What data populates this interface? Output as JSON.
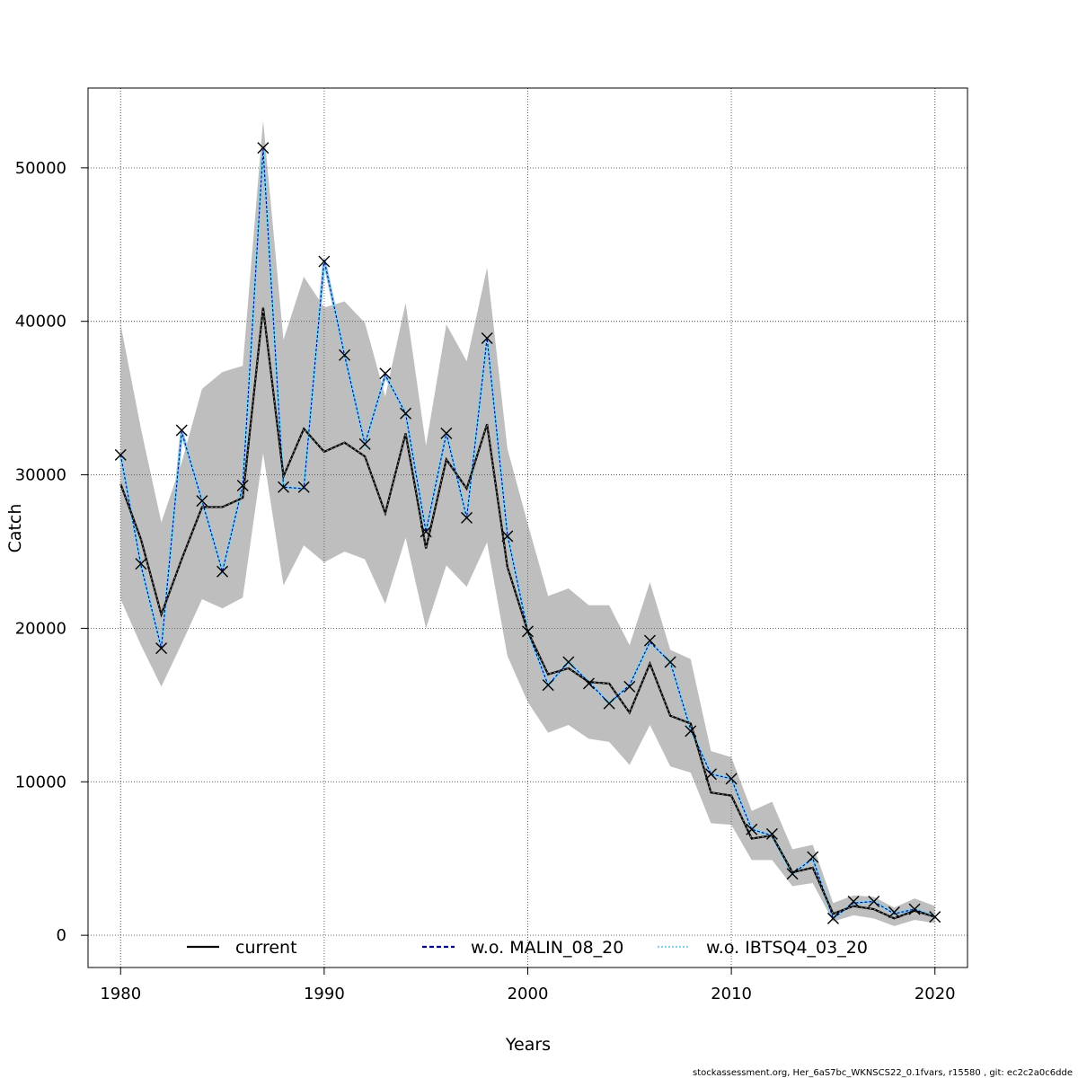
{
  "chart_data": {
    "type": "line",
    "xlabel": "Years",
    "ylabel": "Catch",
    "xlim": [
      1978.4,
      2021.6
    ],
    "ylim": [
      -2100,
      55200
    ],
    "x_ticks": [
      1980,
      1990,
      2000,
      2010,
      2020
    ],
    "y_ticks": [
      0,
      10000,
      20000,
      30000,
      40000,
      50000
    ],
    "grid": true,
    "legend_position": "bottom",
    "colors": {
      "band": "#bebebe",
      "current": "#000000",
      "malin": "#000080",
      "ibtsq4": "#87ceeb",
      "observed": "#000000"
    },
    "x": [
      1980,
      1981,
      1982,
      1983,
      1984,
      1985,
      1986,
      1987,
      1988,
      1989,
      1990,
      1991,
      1992,
      1993,
      1994,
      1995,
      1996,
      1997,
      1998,
      1999,
      2000,
      2001,
      2002,
      2003,
      2004,
      2005,
      2006,
      2007,
      2008,
      2009,
      2010,
      2011,
      2012,
      2013,
      2014,
      2015,
      2016,
      2017,
      2018,
      2019,
      2020
    ],
    "band": {
      "name": "current confidence interval",
      "upper": [
        39800,
        33000,
        26900,
        30800,
        35600,
        36700,
        37100,
        53100,
        38800,
        42900,
        40900,
        41300,
        39900,
        35100,
        41200,
        31900,
        39800,
        37400,
        43500,
        31700,
        26800,
        22100,
        22600,
        21500,
        21500,
        18900,
        23000,
        18600,
        18000,
        12000,
        11600,
        8100,
        8700,
        5600,
        5900,
        2100,
        2600,
        2500,
        1800,
        2400,
        1900
      ],
      "lower": [
        21900,
        18900,
        16200,
        19000,
        21900,
        21300,
        22000,
        31400,
        22800,
        25400,
        24300,
        25000,
        24500,
        21600,
        25900,
        20000,
        24100,
        22700,
        25600,
        18200,
        15200,
        13200,
        13700,
        12800,
        12600,
        11100,
        13700,
        11000,
        10600,
        7300,
        7200,
        4900,
        4900,
        3200,
        3400,
        900,
        1300,
        1100,
        600,
        1000,
        800
      ]
    },
    "series": [
      {
        "name": "current",
        "values": [
          29400,
          25800,
          20900,
          24500,
          27900,
          27900,
          28500,
          40900,
          29900,
          33000,
          31500,
          32100,
          31200,
          27500,
          32700,
          25200,
          31000,
          29100,
          33300,
          24000,
          19800,
          17000,
          17400,
          16500,
          16400,
          14500,
          17700,
          14300,
          13800,
          9300,
          9100,
          6300,
          6500,
          4100,
          4400,
          1400,
          1900,
          1700,
          1100,
          1600,
          1200
        ]
      },
      {
        "name": "w.o. MALIN_08_20",
        "values": [
          31300,
          24100,
          18700,
          32800,
          28300,
          23700,
          29300,
          51200,
          29200,
          29100,
          44000,
          37800,
          32000,
          36500,
          34000,
          26300,
          32700,
          27200,
          38900,
          26100,
          19800,
          16300,
          17800,
          16500,
          15100,
          16300,
          19100,
          17800,
          13400,
          10500,
          10200,
          6900,
          6500,
          4000,
          5000,
          1100,
          2100,
          2200,
          1400,
          1700,
          1200
        ]
      },
      {
        "name": "w.o. IBTSQ4_03_20",
        "values": [
          31300,
          24100,
          18700,
          32800,
          28300,
          23700,
          29300,
          51200,
          29200,
          29100,
          44000,
          37800,
          32000,
          36500,
          34000,
          26300,
          32700,
          27200,
          38900,
          26100,
          19800,
          16300,
          17800,
          16500,
          15100,
          16300,
          19100,
          17800,
          13400,
          10500,
          10200,
          6900,
          6500,
          4000,
          5000,
          1100,
          2100,
          2200,
          1400,
          1700,
          1200
        ]
      }
    ],
    "observed": [
      31300,
      24200,
      18700,
      32900,
      28300,
      23700,
      29300,
      51300,
      29200,
      29200,
      43900,
      37800,
      32000,
      36600,
      34000,
      26300,
      32700,
      27200,
      38900,
      26000,
      19800,
      16300,
      17800,
      16400,
      15100,
      16200,
      19200,
      17800,
      13300,
      10500,
      10200,
      6900,
      6600,
      4000,
      5100,
      1100,
      2200,
      2200,
      1500,
      1700,
      1200
    ]
  },
  "footer": "stockassessment.org, Her_6aS7bc_WKNSCS22_0.1fvars, r15580 , git: ec2c2a0c6dde"
}
